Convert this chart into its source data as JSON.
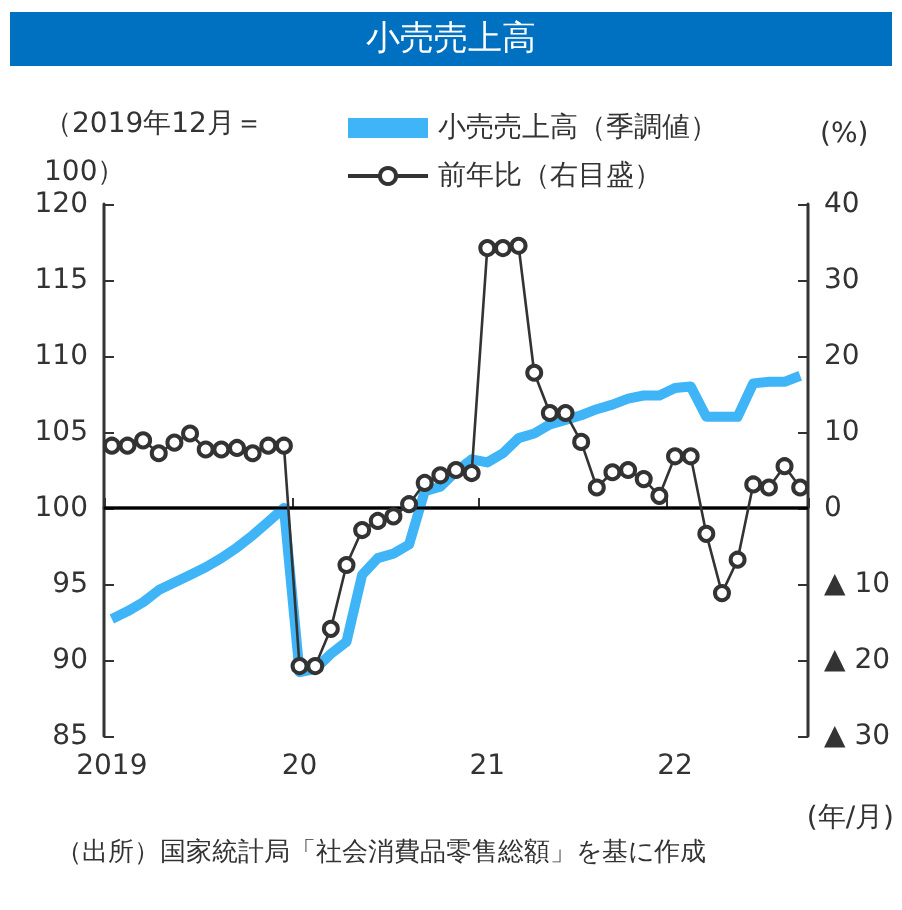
{
  "chart_data": {
    "type": "line",
    "title": "小売売上高",
    "xlabel": "(年/月)",
    "ylabel": "（2019年12月＝100）",
    "y2label": "(%)",
    "categories": [
      "2019",
      null,
      null,
      null,
      null,
      null,
      null,
      null,
      null,
      null,
      null,
      null,
      "20",
      null,
      null,
      null,
      null,
      null,
      null,
      null,
      null,
      null,
      null,
      null,
      "21",
      null,
      null,
      null,
      null,
      null,
      null,
      null,
      null,
      null,
      null,
      null,
      "22",
      null,
      null,
      null,
      null,
      null,
      null,
      null,
      null
    ],
    "series": [
      {
        "name": "小売売上高（季調値）",
        "color": "#3fb4f6",
        "marker": "none",
        "values": [
          92.7,
          93.2,
          93.8,
          94.6,
          95.1,
          95.6,
          96.1,
          96.7,
          97.4,
          98.2,
          99.1,
          100,
          89.2,
          89.4,
          90.4,
          91.2,
          95.6,
          96.7,
          97.0,
          97.6,
          101.1,
          101.4,
          102.4,
          103.2,
          103.0,
          103.6,
          104.6,
          104.9,
          105.5,
          105.8,
          106.1,
          106.5,
          106.8,
          107.2,
          107.4,
          107.4,
          107.9,
          108.0,
          106.0,
          106.0,
          106.0,
          108.2,
          108.3,
          108.3,
          108.7
        ]
      },
      {
        "name": "前年比（右目盛）",
        "color": "#333333",
        "marker": "circle",
        "axis": "y2",
        "values": [
          8.2,
          8.2,
          8.9,
          7.2,
          8.6,
          9.8,
          7.7,
          7.7,
          7.9,
          7.2,
          8.2,
          8.2,
          -20.8,
          -20.8,
          -15.9,
          -7.5,
          -2.9,
          -1.7,
          -1.1,
          0.5,
          3.3,
          4.3,
          5.0,
          4.6,
          34.2,
          34.2,
          34.5,
          17.8,
          12.5,
          12.5,
          8.7,
          2.7,
          4.7,
          5.0,
          3.8,
          1.6,
          6.8,
          6.8,
          -3.4,
          -11.2,
          -6.8,
          3.1,
          2.7,
          5.5,
          2.7
        ]
      }
    ],
    "ylim": [
      85,
      120
    ],
    "yticks": [
      85,
      90,
      95,
      100,
      105,
      110,
      115,
      120
    ],
    "y2lim": [
      -30,
      40
    ],
    "y2ticks": [
      {
        "value": -30,
        "label": "▲ 30"
      },
      {
        "value": -20,
        "label": "▲ 20"
      },
      {
        "value": -10,
        "label": "▲ 10"
      },
      0,
      10,
      20,
      30,
      40
    ],
    "ref_lines": [
      {
        "axis": "y",
        "value": 100,
        "color": "#000000"
      }
    ],
    "grid": false,
    "legend": "top",
    "line_style": "solid",
    "annotations": [
      "（出所）国家統計局「社会消費品零售総額」を基に作成"
    ]
  }
}
